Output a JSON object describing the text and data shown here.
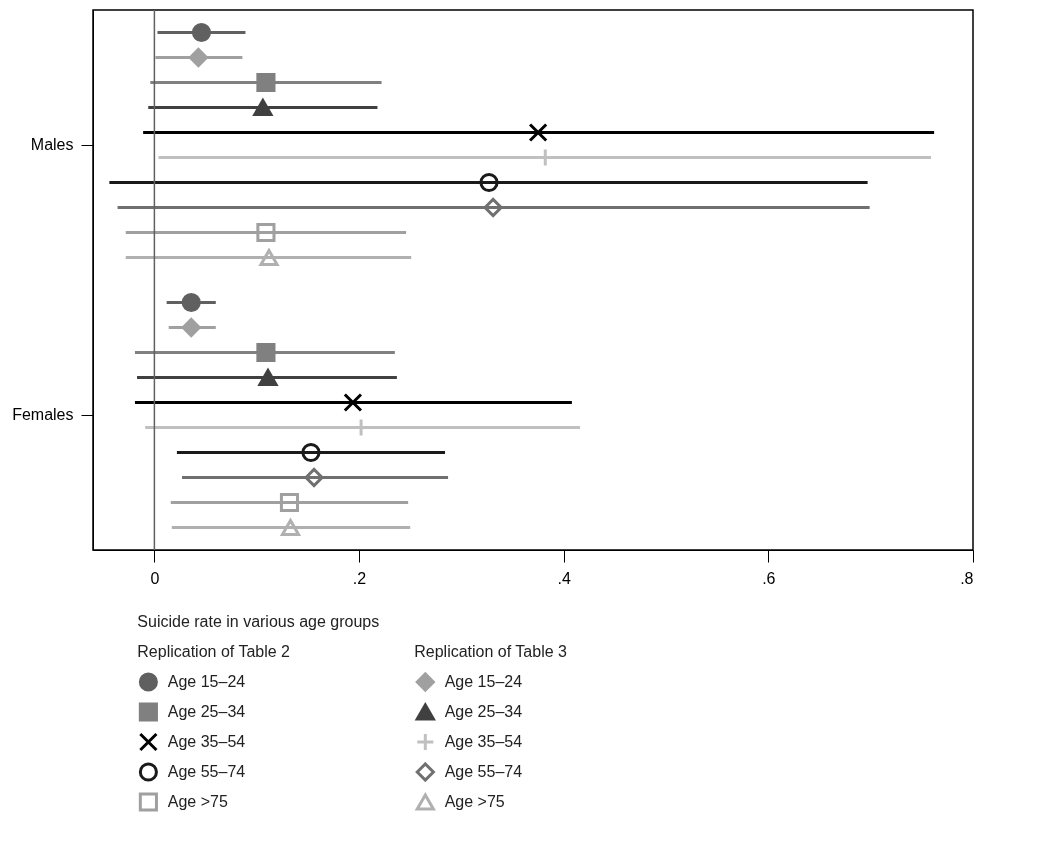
{
  "chart_data": {
    "type": "scatter",
    "orientation": "horizontal",
    "legend_title": "Suicide rate in various age groups",
    "legend": "bottom",
    "annotations": [
      "Replication of Table 2",
      "Replication of Table 3"
    ],
    "categories": [
      "Males",
      "Females"
    ],
    "xlim": [
      -0.06,
      0.8
    ],
    "xticks": [
      0,
      {
        "value": 0.2,
        "label": ".2"
      },
      {
        "value": 0.4,
        "label": ".4"
      },
      {
        "value": 0.6,
        "label": ".6"
      },
      {
        "value": 0.8,
        "label": ".8"
      }
    ],
    "ref_lines": [
      {
        "axis": "x",
        "value": 0,
        "color": "#606060"
      }
    ],
    "series": [
      {
        "name": "Age 15–24",
        "color": "#606060",
        "marker": "circle",
        "values": [
          0.046,
          0.036
        ],
        "errors": [
          [
            0.003,
            0.089
          ],
          [
            0.012,
            0.06
          ]
        ]
      },
      {
        "name": "Age 15–24",
        "color": "#a0a0a0",
        "marker": "diamond",
        "values": [
          0.043,
          0.036
        ],
        "errors": [
          [
            0.001,
            0.086
          ],
          [
            0.014,
            0.06
          ]
        ]
      },
      {
        "name": "Age 25–34",
        "color": "#808080",
        "marker": "square",
        "values": [
          0.109,
          0.109
        ],
        "errors": [
          [
            -0.004,
            0.222
          ],
          [
            -0.019,
            0.235
          ]
        ]
      },
      {
        "name": "Age 25–34",
        "color": "#404040",
        "marker": "triangle",
        "values": [
          0.106,
          0.111
        ],
        "errors": [
          [
            -0.006,
            0.218
          ],
          [
            -0.017,
            0.237
          ]
        ]
      },
      {
        "name": "Age 35–54",
        "color": "#000000",
        "marker": "cross",
        "values": [
          0.375,
          0.194
        ],
        "errors": [
          [
            -0.011,
            0.762
          ],
          [
            -0.019,
            0.408
          ]
        ]
      },
      {
        "name": "Age 35–54",
        "color": "#c0c0c0",
        "marker": "plus",
        "values": [
          0.382,
          0.202
        ],
        "errors": [
          [
            0.004,
            0.759
          ],
          [
            -0.009,
            0.416
          ]
        ]
      },
      {
        "name": "Age 55–74",
        "color": "#1a1a1a",
        "marker": "circle-open",
        "values": [
          0.327,
          0.153
        ],
        "errors": [
          [
            -0.044,
            0.697
          ],
          [
            0.022,
            0.284
          ]
        ]
      },
      {
        "name": "Age 55–74",
        "color": "#707070",
        "marker": "diamond-open",
        "values": [
          0.331,
          0.156
        ],
        "errors": [
          [
            -0.036,
            0.699
          ],
          [
            0.027,
            0.287
          ]
        ]
      },
      {
        "name": "Age >75",
        "color": "#a0a0a0",
        "marker": "square-open",
        "values": [
          0.109,
          0.132
        ],
        "errors": [
          [
            -0.028,
            0.246
          ],
          [
            0.016,
            0.248
          ]
        ]
      },
      {
        "name": "Age >75",
        "color": "#b0b0b0",
        "marker": "triangle-open",
        "values": [
          0.112,
          0.133
        ],
        "errors": [
          [
            -0.028,
            0.251
          ],
          [
            0.017,
            0.25
          ]
        ]
      }
    ]
  }
}
